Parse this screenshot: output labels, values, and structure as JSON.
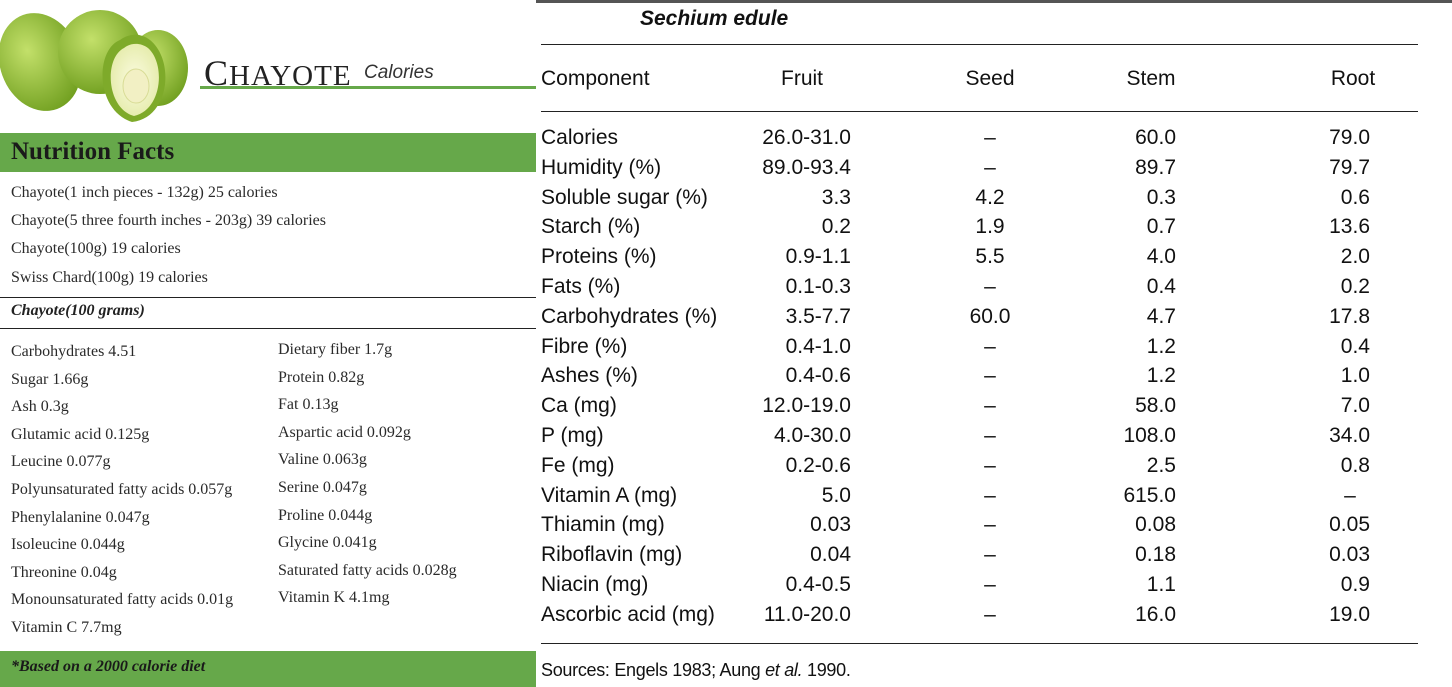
{
  "left": {
    "title": "CHAYOTE",
    "subtitle": "Calories",
    "heading": "Nutrition Facts",
    "calories": [
      "Chayote(1 inch pieces - 132g) 25 calories",
      "Chayote(5 three fourth inches - 203g) 39 calories",
      "Chayote(100g) 19 calories",
      "Swiss Chard(100g) 19 calories"
    ],
    "section": "Chayote(100 grams)",
    "nutrients_left": [
      "Carbohydrates 4.51",
      "Sugar 1.66g",
      "Ash 0.3g",
      "Glutamic acid 0.125g",
      "Leucine 0.077g",
      "Polyunsaturated fatty acids 0.057g",
      "Phenylalanine 0.047g",
      "Isoleucine 0.044g",
      "Threonine 0.04g",
      "Monounsaturated fatty acids 0.01g",
      "Vitamin C 7.7mg"
    ],
    "nutrients_right": [
      "Dietary fiber 1.7g",
      "Protein 0.82g",
      "Fat 0.13g",
      "Aspartic acid 0.092g",
      "Valine 0.063g",
      "Serine 0.047g",
      "Proline 0.044g",
      "Glycine 0.041g",
      "Saturated fatty acids 0.028g",
      "Vitamin K 4.1mg"
    ],
    "footer": "*Based on a 2000 calorie diet"
  },
  "right": {
    "title": "Sechium edule",
    "columns": [
      "Component",
      "Fruit",
      "Seed",
      "Stem",
      "Root"
    ],
    "rows": [
      [
        "Calories",
        "26.0-31.0",
        "–",
        "60.0",
        "79.0"
      ],
      [
        "Humidity (%)",
        "89.0-93.4",
        "–",
        "89.7",
        "79.7"
      ],
      [
        "Soluble sugar (%)",
        "3.3",
        "4.2",
        "0.3",
        "0.6"
      ],
      [
        "Starch (%)",
        "0.2",
        "1.9",
        "0.7",
        "13.6"
      ],
      [
        "Proteins (%)",
        "0.9-1.1",
        "5.5",
        "4.0",
        "2.0"
      ],
      [
        "Fats (%)",
        "0.1-0.3",
        "–",
        "0.4",
        "0.2"
      ],
      [
        "Carbohydrates (%)",
        "3.5-7.7",
        "60.0",
        "4.7",
        "17.8"
      ],
      [
        "Fibre (%)",
        "0.4-1.0",
        "–",
        "1.2",
        "0.4"
      ],
      [
        "Ashes (%)",
        "0.4-0.6",
        "–",
        "1.2",
        "1.0"
      ],
      [
        "Ca (mg)",
        "12.0-19.0",
        "–",
        "58.0",
        "7.0"
      ],
      [
        "P (mg)",
        "4.0-30.0",
        "–",
        "108.0",
        "34.0"
      ],
      [
        "Fe (mg)",
        "0.2-0.6",
        "–",
        "2.5",
        "0.8"
      ],
      [
        "Vitamin A (mg)",
        "5.0",
        "–",
        "615.0",
        "–"
      ],
      [
        "Thiamin (mg)",
        "0.03",
        "–",
        "0.08",
        "0.05"
      ],
      [
        "Riboflavin (mg)",
        "0.04",
        "–",
        "0.18",
        "0.03"
      ],
      [
        "Niacin (mg)",
        "0.4-0.5",
        "–",
        "1.1",
        "0.9"
      ],
      [
        "Ascorbic acid (mg)",
        "11.0-20.0",
        "–",
        "16.0",
        "19.0"
      ]
    ],
    "sources": {
      "prefix": "Sources: Engels 1983; Aung ",
      "italic": "et al.",
      "suffix": " 1990."
    }
  }
}
